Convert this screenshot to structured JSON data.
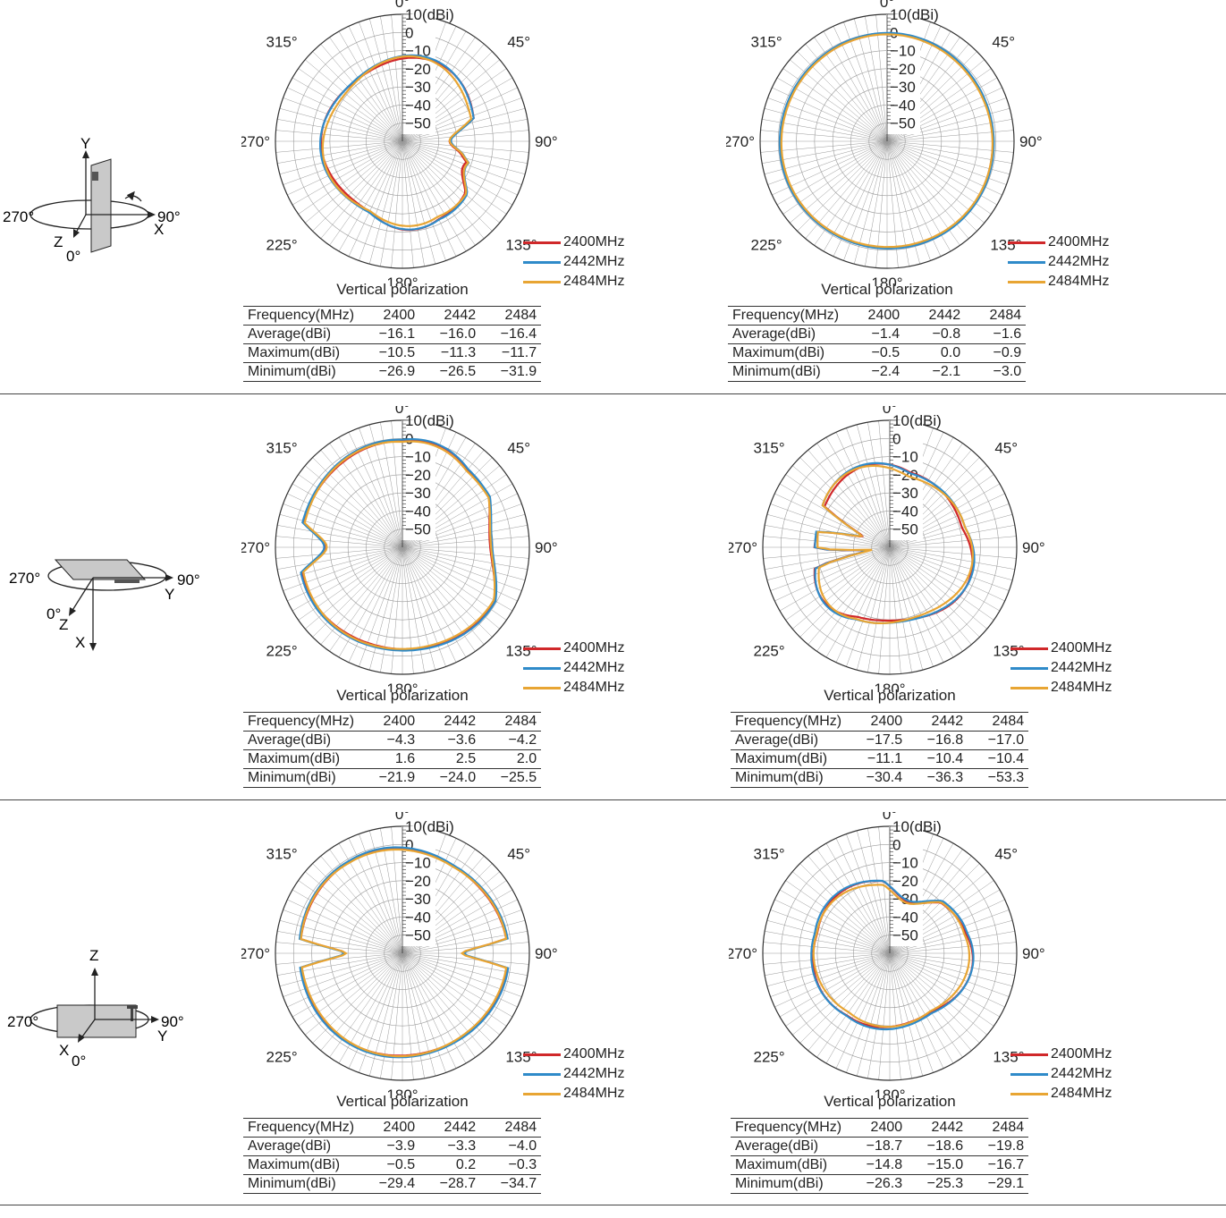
{
  "common": {
    "angle_labels": [
      "0°",
      "45°",
      "90°",
      "135°",
      "180°",
      "225°",
      "270°",
      "315°"
    ],
    "radial_labels": [
      "10(dBi)",
      "0",
      "−10",
      "−20",
      "−30",
      "−40",
      "−50"
    ],
    "polarization": "Vertical polarization",
    "legend": [
      "2400MHz",
      "2442MHz",
      "2484MHz"
    ],
    "colors": [
      "#d0282a",
      "#2f8bc9",
      "#e8a533"
    ],
    "table_header": [
      "Frequency(MHz)",
      "2400",
      "2442",
      "2484"
    ],
    "row_labels": [
      "Average(dBi)",
      "Maximum(dBi)",
      "Minimum(dBi)"
    ]
  },
  "orientations": [
    {
      "angle_left": "270°",
      "angle_right": "90°",
      "angle_front": "0°",
      "axis_up": "Y",
      "axis_side": "X",
      "axis_front": "Z"
    },
    {
      "angle_left": "270°",
      "angle_right": "90°",
      "angle_front": "0°",
      "axis_down": "X",
      "axis_side": "Y",
      "axis_front": "Z"
    },
    {
      "angle_left": "270°",
      "angle_right": "90°",
      "angle_front": "0°",
      "axis_up": "Z",
      "axis_side": "Y",
      "axis_front": "X"
    }
  ],
  "chart_data": [
    {
      "type": "polar",
      "series": [
        {
          "name": "2400MHz"
        },
        {
          "name": "2442MHz"
        },
        {
          "name": "2484MHz"
        }
      ],
      "rlim": [
        -60,
        10
      ],
      "table": {
        "average": [
          "−16.1",
          "−16.0",
          "−16.4"
        ],
        "maximum": [
          "−10.5",
          "−11.3",
          "−11.7"
        ],
        "minimum": [
          "−26.9",
          "−26.5",
          "−31.9"
        ]
      },
      "pattern": {
        "base": -16,
        "amp": 4,
        "nulls": [
          {
            "a": 90,
            "d": 14,
            "w": 18
          },
          {
            "a": 115,
            "d": 6,
            "w": 14
          }
        ],
        "bumps": [
          {
            "a": 180,
            "d": -3,
            "w": 25
          }
        ],
        "var": [
          0,
          0.6,
          -0.5
        ]
      }
    },
    {
      "type": "polar",
      "series": [
        {
          "name": "2400MHz"
        },
        {
          "name": "2442MHz"
        },
        {
          "name": "2484MHz"
        }
      ],
      "rlim": [
        -60,
        10
      ],
      "table": {
        "average": [
          "−1.4",
          "−0.8",
          "−1.6"
        ],
        "maximum": [
          "−0.5",
          "0.0",
          "−0.9"
        ],
        "minimum": [
          "−2.4",
          "−2.1",
          "−3.0"
        ]
      },
      "pattern": {
        "base": -1.3,
        "amp": 0.6,
        "nulls": [],
        "bumps": [],
        "var": [
          0,
          0.5,
          -0.3
        ]
      }
    },
    {
      "type": "polar",
      "series": [
        {
          "name": "2400MHz"
        },
        {
          "name": "2442MHz"
        },
        {
          "name": "2484MHz"
        }
      ],
      "rlim": [
        -60,
        10
      ],
      "table": {
        "average": [
          "−4.3",
          "−3.6",
          "−4.2"
        ],
        "maximum": [
          "1.6",
          "2.5",
          "2.0"
        ],
        "minimum": [
          "−21.9",
          "−24.0",
          "−25.5"
        ]
      },
      "pattern": {
        "base": -3,
        "amp": 2,
        "nulls": [
          {
            "a": 90,
            "d": 8,
            "w": 30
          },
          {
            "a": 270,
            "d": 14,
            "w": 14
          }
        ],
        "bumps": [
          {
            "a": 20,
            "d": -2,
            "w": 20
          }
        ],
        "var": [
          0,
          0.7,
          -0.3
        ]
      }
    },
    {
      "type": "polar",
      "series": [
        {
          "name": "2400MHz"
        },
        {
          "name": "2442MHz"
        },
        {
          "name": "2484MHz"
        }
      ],
      "rlim": [
        -60,
        10
      ],
      "table": {
        "average": [
          "−17.5",
          "−16.8",
          "−17.0"
        ],
        "maximum": [
          "−11.1",
          "−10.4",
          "−10.4"
        ],
        "minimum": [
          "−30.4",
          "−36.3",
          "−53.3"
        ]
      },
      "pattern": {
        "base": -17,
        "amp": 5,
        "nulls": [
          {
            "a": 292,
            "d": 25,
            "w": 10
          },
          {
            "a": 262,
            "d": 30,
            "w": 7
          }
        ],
        "bumps": [
          {
            "a": 45,
            "d": -4,
            "w": 30
          },
          {
            "a": 230,
            "d": -3,
            "w": 25
          }
        ],
        "var": [
          0,
          0.6,
          -0.4
        ]
      }
    },
    {
      "type": "polar",
      "series": [
        {
          "name": "2400MHz"
        },
        {
          "name": "2442MHz"
        },
        {
          "name": "2484MHz"
        }
      ],
      "rlim": [
        -60,
        10
      ],
      "table": {
        "average": [
          "−3.9",
          "−3.3",
          "−4.0"
        ],
        "maximum": [
          "−0.5",
          "0.2",
          "−0.3"
        ],
        "minimum": [
          "−29.4",
          "−28.7",
          "−34.7"
        ]
      },
      "pattern": {
        "base": -3,
        "amp": 1.5,
        "nulls": [
          {
            "a": 90,
            "d": 25,
            "w": 8
          },
          {
            "a": 270,
            "d": 25,
            "w": 8
          }
        ],
        "bumps": [
          {
            "a": 0,
            "d": -1,
            "w": 30
          }
        ],
        "var": [
          0,
          0.6,
          -0.3
        ]
      }
    },
    {
      "type": "polar",
      "series": [
        {
          "name": "2400MHz"
        },
        {
          "name": "2442MHz"
        },
        {
          "name": "2484MHz"
        }
      ],
      "rlim": [
        -60,
        10
      ],
      "table": {
        "average": [
          "−18.7",
          "−18.6",
          "−19.8"
        ],
        "maximum": [
          "−14.8",
          "−15.0",
          "−16.7"
        ],
        "minimum": [
          "−26.3",
          "−25.3",
          "−29.1"
        ]
      },
      "pattern": {
        "base": -19,
        "amp": 3,
        "nulls": [
          {
            "a": 20,
            "d": 8,
            "w": 25
          }
        ],
        "bumps": [
          {
            "a": 110,
            "d": -3,
            "w": 35
          },
          {
            "a": 250,
            "d": -3,
            "w": 35
          }
        ],
        "var": [
          0,
          0.7,
          -1.0
        ]
      }
    }
  ]
}
